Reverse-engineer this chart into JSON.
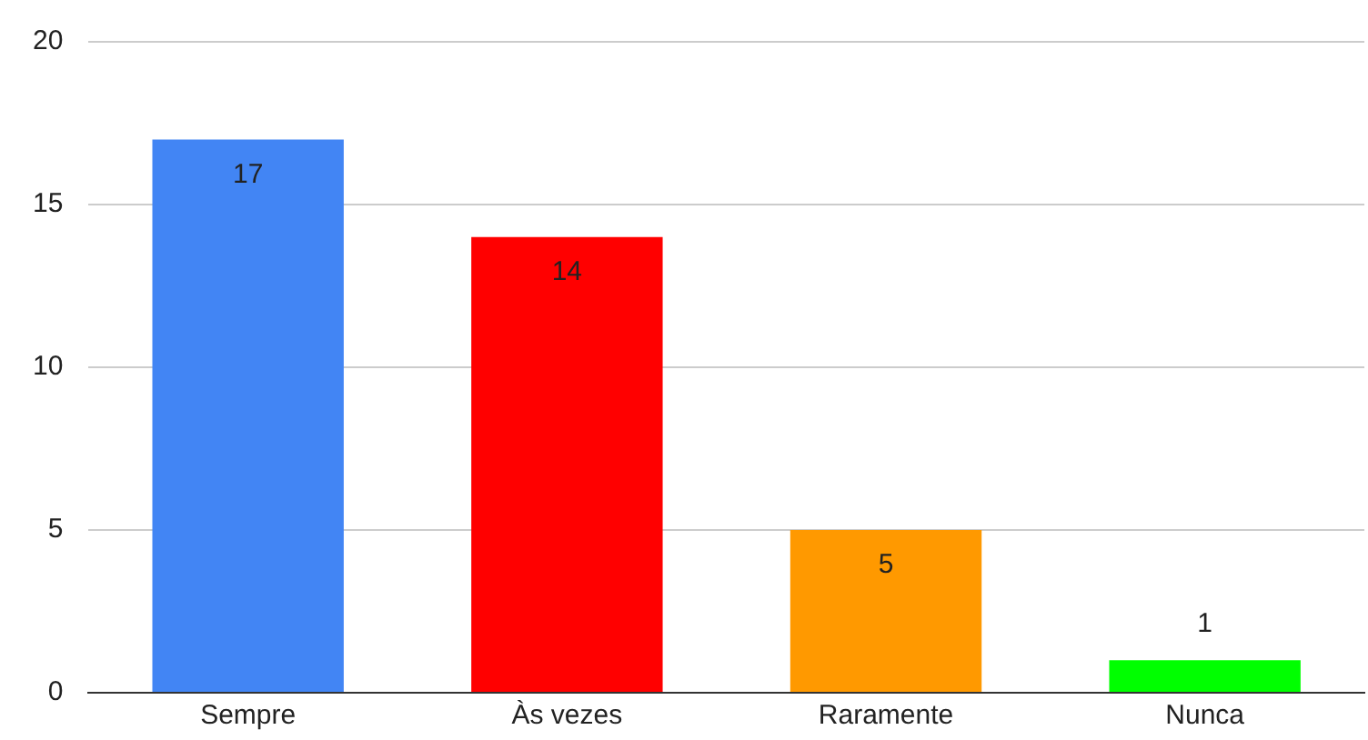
{
  "chart_data": {
    "type": "bar",
    "categories": [
      "Sempre",
      "Às vezes",
      "Raramente",
      "Nunca"
    ],
    "values": [
      17,
      14,
      5,
      1
    ],
    "colors": [
      "#4285f4",
      "#ff0000",
      "#ff9900",
      "#00ff00"
    ],
    "ylim": [
      0,
      20
    ],
    "yticks": [
      0,
      5,
      10,
      15,
      20
    ],
    "grid": "y",
    "data_labels": true,
    "legend": false
  }
}
